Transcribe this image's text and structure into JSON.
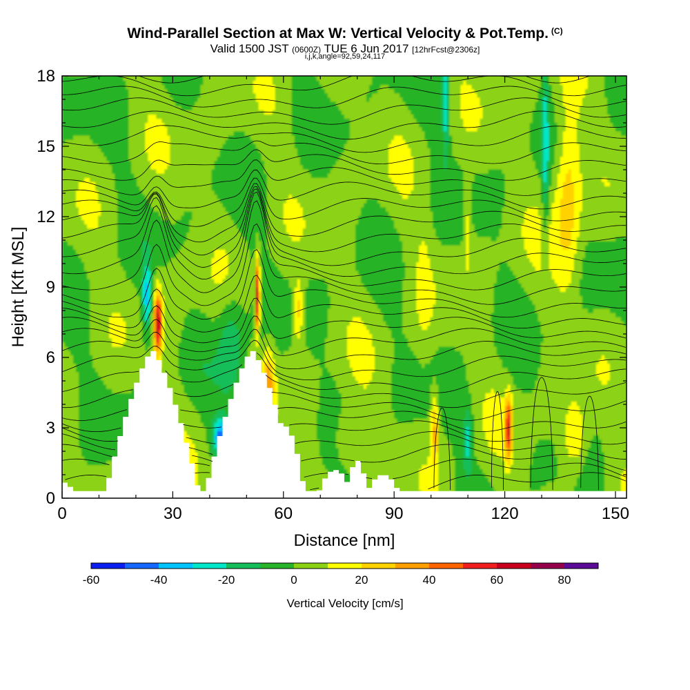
{
  "header": {
    "title": "Wind-Parallel Section at Max W: Vertical Velocity & Pot.Temp.",
    "copyright": "(C)",
    "subtitle_main": "Valid 1500 JST",
    "subtitle_utc": "(0600Z)",
    "subtitle_date": "TUE 6 Jun 2017",
    "subtitle_fcst": "[12hrFcst@2306z]",
    "indices": "i,j,k,angle=92,59,24,117"
  },
  "chart_data": {
    "type": "heatmap",
    "xlabel": "Distance [nm]",
    "ylabel": "Height [Kft MSL]",
    "xlim": [
      0,
      153
    ],
    "ylim": [
      0,
      18
    ],
    "x_ticks": [
      "0",
      "30",
      "60",
      "90",
      "120",
      "150"
    ],
    "y_ticks": [
      "0",
      "3",
      "6",
      "9",
      "12",
      "15",
      "18"
    ],
    "colorbar": {
      "label": "Vertical Velocity [cm/s]",
      "ticks": [
        "-60",
        "-40",
        "-20",
        "0",
        "20",
        "40",
        "60",
        "80"
      ],
      "levels": [
        -60,
        -50,
        -40,
        -30,
        -20,
        -10,
        0,
        10,
        20,
        30,
        40,
        50,
        60,
        70,
        80,
        90
      ],
      "colors": [
        "#0a1ef0",
        "#1468ff",
        "#00c4ff",
        "#00e6c8",
        "#14be5a",
        "#28b428",
        "#8cd214",
        "#ffff00",
        "#ffd200",
        "#ffa000",
        "#ff6400",
        "#f01e1e",
        "#c8001e",
        "#96004b",
        "#5a0a96"
      ]
    },
    "terrain_peaks": [
      {
        "distance": 24.5,
        "height": 6.3
      },
      {
        "distance": 51.5,
        "height": 6.3
      }
    ],
    "updraft_cores": [
      {
        "distance": 26,
        "height_top": 9.5,
        "w_max": 65
      },
      {
        "distance": 53,
        "height_top": 10.3,
        "w_max": 70
      },
      {
        "distance": 121,
        "height_top": 4.2,
        "w_max": 55
      }
    ],
    "downdraft_cores": [
      {
        "distance": 43,
        "height_top": 3.5,
        "w_min": -45
      },
      {
        "distance": 104,
        "height_top": 17.5,
        "w_min": -28
      },
      {
        "distance": 131,
        "height_top": 18,
        "w_min": -25
      }
    ]
  }
}
